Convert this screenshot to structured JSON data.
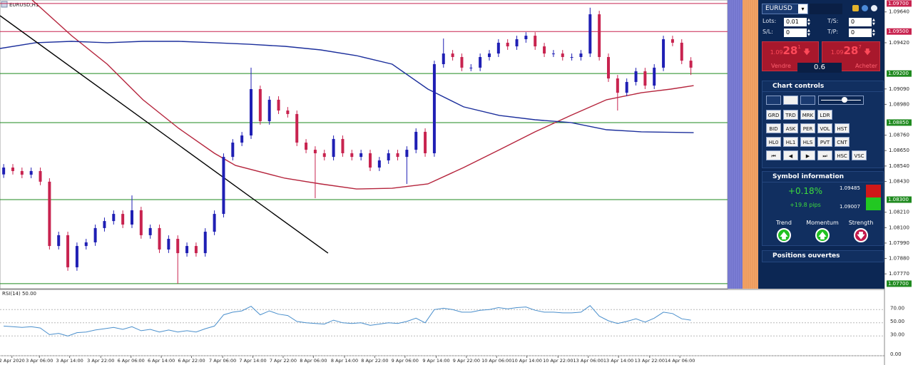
{
  "chart": {
    "type": "candlestick",
    "title": "EURUSD,H1",
    "up_color": "#1f1fb4",
    "down_color": "#c8234f",
    "xlim": [
      -0.4,
      79
    ],
    "ylim": [
      1.07664,
      1.09725
    ],
    "open": [
      1.0848,
      1.08529,
      1.08504,
      1.08478,
      1.08504,
      1.08428,
      1.07969,
      1.08046,
      1.07817,
      1.07969,
      1.07995,
      1.08097,
      1.08147,
      1.08198,
      1.08122,
      1.08224,
      1.08046,
      1.08097,
      1.07944,
      1.0802,
      1.07918,
      1.07969,
      1.07918,
      1.08071,
      1.08198,
      1.08605,
      1.08707,
      1.08758,
      1.09089,
      1.0886,
      1.09013,
      1.08936,
      1.08911,
      1.08707,
      1.08656,
      1.08631,
      1.08605,
      1.08733,
      1.08631,
      1.08605,
      1.08631,
      1.08529,
      1.0858,
      1.08631,
      1.08605,
      1.08656,
      1.08784,
      1.08631,
      1.09267,
      1.09343,
      1.09318,
      1.09242,
      1.09242,
      1.09318,
      1.09343,
      1.0942,
      1.09394,
      1.09445,
      1.0947,
      1.09394,
      1.09343,
      1.09343,
      1.09318,
      1.09318,
      1.09343,
      1.09623,
      1.09318,
      1.09165,
      1.09063,
      1.0914,
      1.09216,
      1.09114,
      1.09242,
      1.09445,
      1.0942,
      1.09292
    ],
    "high": [
      1.08554,
      1.08554,
      1.08529,
      1.08529,
      1.08529,
      1.08453,
      1.08071,
      1.08071,
      1.07994,
      1.0802,
      1.08122,
      1.08172,
      1.08223,
      1.08223,
      1.0833,
      1.08249,
      1.08122,
      1.08122,
      1.08045,
      1.08045,
      1.07994,
      1.07994,
      1.08096,
      1.08223,
      1.0863,
      1.08732,
      1.08783,
      1.09242,
      1.09114,
      1.09038,
      1.09038,
      1.08961,
      1.08936,
      1.08732,
      1.08681,
      1.08656,
      1.08758,
      1.08758,
      1.08656,
      1.08656,
      1.08656,
      1.08605,
      1.08656,
      1.08656,
      1.08681,
      1.08809,
      1.08809,
      1.09292,
      1.0945,
      1.09368,
      1.09343,
      1.09267,
      1.09343,
      1.09368,
      1.09445,
      1.09445,
      1.0947,
      1.09495,
      1.09495,
      1.09419,
      1.09368,
      1.09368,
      1.09343,
      1.09368,
      1.0967,
      1.09648,
      1.09343,
      1.0919,
      1.09165,
      1.09241,
      1.09241,
      1.09267,
      1.0947,
      1.0947,
      1.09445,
      1.09317
    ],
    "low": [
      1.08455,
      1.08479,
      1.08453,
      1.08453,
      1.08403,
      1.07944,
      1.07944,
      1.07792,
      1.07792,
      1.07944,
      1.0797,
      1.08072,
      1.08122,
      1.08097,
      1.08097,
      1.08021,
      1.08021,
      1.07919,
      1.07919,
      1.077,
      1.07893,
      1.07893,
      1.07893,
      1.08046,
      1.08173,
      1.0858,
      1.08682,
      1.08733,
      1.08835,
      1.08835,
      1.08911,
      1.08886,
      1.08682,
      1.08631,
      1.0831,
      1.0858,
      1.0858,
      1.08606,
      1.0858,
      1.0858,
      1.08504,
      1.08504,
      1.08555,
      1.0858,
      1.08412,
      1.08631,
      1.08606,
      1.08606,
      1.09242,
      1.09293,
      1.09217,
      1.09217,
      1.09217,
      1.09293,
      1.09318,
      1.09369,
      1.09369,
      1.0942,
      1.09369,
      1.09318,
      1.09318,
      1.09293,
      1.09293,
      1.09293,
      1.09318,
      1.09293,
      1.0914,
      1.08936,
      1.09038,
      1.09115,
      1.09089,
      1.09089,
      1.09217,
      1.09395,
      1.09267,
      1.0919
    ],
    "close": [
      1.08529,
      1.08504,
      1.08478,
      1.08504,
      1.08428,
      1.07969,
      1.08046,
      1.07817,
      1.07969,
      1.07995,
      1.08097,
      1.08147,
      1.08198,
      1.08122,
      1.08224,
      1.08046,
      1.08097,
      1.07944,
      1.0802,
      1.07918,
      1.07969,
      1.07918,
      1.08071,
      1.08198,
      1.08605,
      1.08707,
      1.08758,
      1.09089,
      1.0886,
      1.09013,
      1.08936,
      1.08911,
      1.08707,
      1.08656,
      1.08631,
      1.08605,
      1.08733,
      1.08631,
      1.08605,
      1.08631,
      1.08529,
      1.0858,
      1.08631,
      1.08605,
      1.08656,
      1.08784,
      1.08631,
      1.09267,
      1.09343,
      1.09318,
      1.09242,
      1.09242,
      1.09318,
      1.09343,
      1.0942,
      1.09394,
      1.09445,
      1.0947,
      1.09394,
      1.09343,
      1.09343,
      1.09318,
      1.09318,
      1.09343,
      1.09623,
      1.09318,
      1.09165,
      1.09063,
      1.0914,
      1.09216,
      1.09114,
      1.09242,
      1.09445,
      1.0942,
      1.09292,
      1.09242
    ],
    "series": [
      {
        "color": "#b5243c",
        "x": [
          3.1,
          7.4,
          11.3,
          15.2,
          19.1,
          23.0,
          25.3,
          30.7,
          34.6,
          38.5,
          42.4,
          46.3,
          50.2,
          54.1,
          58.0,
          61.9,
          65.8,
          69.6,
          72.8,
          75.3
        ],
        "values": [
          1.09725,
          1.09471,
          1.09267,
          1.09013,
          1.08809,
          1.08631,
          1.08544,
          1.08453,
          1.08412,
          1.08376,
          1.08381,
          1.08412,
          1.08529,
          1.08656,
          1.08784,
          1.08901,
          1.09013,
          1.09063,
          1.09089,
          1.09114
        ]
      },
      {
        "color": "#1c2f9c",
        "x": [
          -0.4,
          3.5,
          7.4,
          11.3,
          15.2,
          19.1,
          23.0,
          26.8,
          30.7,
          34.6,
          38.5,
          42.4,
          46.3,
          50.2,
          54.1,
          58.0,
          61.9,
          65.8,
          69.6,
          75.3
        ],
        "values": [
          1.09379,
          1.0942,
          1.0943,
          1.0942,
          1.0943,
          1.0943,
          1.0942,
          1.09409,
          1.09394,
          1.09369,
          1.09328,
          1.09267,
          1.09089,
          1.08962,
          1.08901,
          1.0887,
          1.0885,
          1.08799,
          1.08784,
          1.08778
        ]
      },
      {
        "color": "#000000",
        "x": [
          -0.4,
          35.4
        ],
        "values": [
          1.09613,
          1.07918
        ]
      }
    ],
    "levels": [
      {
        "value": 1.097,
        "label": "1.09700",
        "color": "#c8234f"
      },
      {
        "value": 1.095,
        "label": "1.09500",
        "color": "#c8234f"
      },
      {
        "value": 1.092,
        "label": "1.09200",
        "color": "#1f8a1f"
      },
      {
        "value": 1.0885,
        "label": "1.08850",
        "color": "#1f8a1f"
      },
      {
        "value": 1.083,
        "label": "1.08300",
        "color": "#1f8a1f"
      },
      {
        "value": 1.077,
        "label": "1.07700",
        "color": "#1f8a1f"
      }
    ],
    "yticks": [
      {
        "value": 1.0964,
        "label": "1.09640"
      },
      {
        "value": 1.0942,
        "label": "1.09420"
      },
      {
        "value": 1.0909,
        "label": "1.09090"
      },
      {
        "value": 1.0898,
        "label": "1.08980"
      },
      {
        "value": 1.0876,
        "label": "1.08760"
      },
      {
        "value": 1.0865,
        "label": "1.08650"
      },
      {
        "value": 1.0854,
        "label": "1.08540"
      },
      {
        "value": 1.0843,
        "label": "1.08430"
      },
      {
        "value": 1.0821,
        "label": "1.08210"
      },
      {
        "value": 1.081,
        "label": "1.08100"
      },
      {
        "value": 1.0799,
        "label": "1.07990"
      },
      {
        "value": 1.0788,
        "label": "1.07880"
      },
      {
        "value": 1.0777,
        "label": "1.07770"
      }
    ],
    "xticks": [
      {
        "value": 0.9,
        "label": "2 Apr 2020"
      },
      {
        "value": 3.9,
        "label": "3 Apr 06:00"
      },
      {
        "value": 7.2,
        "label": "3 Apr 14:00"
      },
      {
        "value": 10.6,
        "label": "3 Apr 22:00"
      },
      {
        "value": 13.9,
        "label": "6 Apr 06:00"
      },
      {
        "value": 17.2,
        "label": "6 Apr 14:00"
      },
      {
        "value": 20.5,
        "label": "6 Apr 22:00"
      },
      {
        "value": 23.9,
        "label": "7 Apr 06:00"
      },
      {
        "value": 27.2,
        "label": "7 Apr 14:00"
      },
      {
        "value": 30.5,
        "label": "7 Apr 22:00"
      },
      {
        "value": 33.8,
        "label": "8 Apr 06:00"
      },
      {
        "value": 37.2,
        "label": "8 Apr 14:00"
      },
      {
        "value": 40.5,
        "label": "8 Apr 22:00"
      },
      {
        "value": 43.8,
        "label": "9 Apr 06:00"
      },
      {
        "value": 47.2,
        "label": "9 Apr 14:00"
      },
      {
        "value": 50.5,
        "label": "9 Apr 22:00"
      },
      {
        "value": 53.8,
        "label": "10 Apr 06:00"
      },
      {
        "value": 57.1,
        "label": "10 Apr 14:00"
      },
      {
        "value": 60.5,
        "label": "10 Apr 22:00"
      },
      {
        "value": 63.8,
        "label": "13 Apr 06:00"
      },
      {
        "value": 67.1,
        "label": "13 Apr 14:00"
      },
      {
        "value": 70.5,
        "label": "13 Apr 22:00"
      },
      {
        "value": 73.8,
        "label": "14 Apr 06:00"
      }
    ]
  },
  "rsi": {
    "title": "RSI(14) 50.00",
    "color": "#4a8fcc",
    "ylim": [
      0,
      100
    ],
    "yticks": [
      {
        "value": 70,
        "label": "70.00"
      },
      {
        "value": 50,
        "label": "50.00"
      },
      {
        "value": 30,
        "label": "30.00"
      },
      {
        "value": 0,
        "label": "0.00"
      }
    ],
    "values": [
      45,
      44,
      43,
      44,
      42,
      32,
      34,
      30,
      35,
      36,
      39,
      41,
      43,
      40,
      44,
      38,
      40,
      36,
      39,
      36,
      38,
      36,
      41,
      45,
      62,
      66,
      68,
      75,
      62,
      68,
      63,
      61,
      52,
      50,
      49,
      48,
      54,
      50,
      49,
      50,
      46,
      48,
      50,
      49,
      52,
      57,
      50,
      70,
      72,
      70,
      66,
      66,
      69,
      70,
      73,
      71,
      73,
      74,
      69,
      66,
      66,
      65,
      65,
      66,
      76,
      60,
      53,
      49,
      52,
      56,
      51,
      57,
      66,
      64,
      56,
      54
    ]
  },
  "panel": {
    "symbol": "EURUSD",
    "fields": [
      {
        "label": "Lots:",
        "value": "0.01"
      },
      {
        "label": "T/S:",
        "value": "0"
      },
      {
        "label": "S/L:",
        "value": "0"
      },
      {
        "label": "T/P:",
        "value": "0"
      }
    ],
    "sell": {
      "prefix": "1.09",
      "big": "28",
      "suffix": "1",
      "label": "Vendre"
    },
    "buy": {
      "prefix": "1.09",
      "big": "28",
      "suffix": "7",
      "label": "Acheter"
    },
    "spread": "0.6",
    "chart_controls": {
      "title": "Chart controls",
      "rows": [
        [
          "GRD",
          "TRD",
          "MRK",
          "LDR"
        ],
        [
          "BID",
          "ASK",
          "PER",
          "VOL",
          "HST"
        ],
        [
          "HL0",
          "HL1",
          "HLS",
          "PVT",
          "CNT"
        ],
        [
          "HSC",
          "VSC"
        ]
      ]
    },
    "symbol_info": {
      "title": "Symbol information",
      "change": "+0.18%",
      "pips": "+19.8 pips",
      "high": "1.09485",
      "low": "1.09007",
      "indicators": [
        {
          "label": "Trend",
          "direction": "up"
        },
        {
          "label": "Momentum",
          "direction": "up"
        },
        {
          "label": "Strength",
          "direction": "down"
        }
      ]
    },
    "positions": "Positions ouvertes"
  }
}
